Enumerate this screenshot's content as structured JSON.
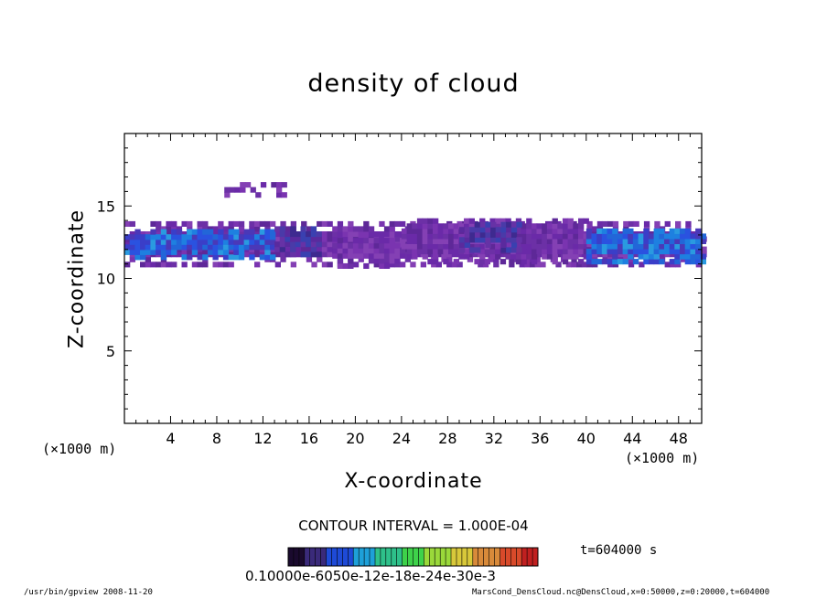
{
  "chart_data": {
    "type": "heatmap",
    "title": "density of cloud",
    "xlabel": "X-coordinate",
    "ylabel": "Z-coordinate",
    "x_unit": "(×1000 m)",
    "xlim": [
      0,
      50
    ],
    "ylim": [
      0,
      20
    ],
    "x_ticks": [
      4,
      8,
      12,
      16,
      20,
      24,
      28,
      32,
      36,
      40,
      44,
      48
    ],
    "y_ticks": [
      5,
      10,
      15
    ],
    "contour_interval_label": "CONTOUR INTERVAL = 1.000E-04",
    "colorbar_labels": "0.10000e-6050e-12e-18e-24e-30e-3",
    "colorbar_colors": [
      "#1a0a2e",
      "#3a2a7a",
      "#1e4ad6",
      "#1ea0d8",
      "#2ec08a",
      "#3ed24a",
      "#9ad83a",
      "#d8c83a",
      "#d88a3a",
      "#d84a2a",
      "#c02020"
    ],
    "time_label": "t=604000 s",
    "regions": [
      {
        "level": "low",
        "x0": 0,
        "x1": 50,
        "z0": 10.8,
        "z1": 13.6
      },
      {
        "level": "high",
        "x0": 0,
        "x1": 13,
        "z0": 11.3,
        "z1": 13.3
      },
      {
        "level": "mid",
        "x0": 13,
        "x1": 17,
        "z0": 11.5,
        "z1": 13.5
      },
      {
        "level": "low",
        "x0": 18,
        "x1": 24,
        "z0": 10.7,
        "z1": 12.6
      },
      {
        "level": "low",
        "x0": 24,
        "x1": 40,
        "z0": 11.0,
        "z1": 14.0
      },
      {
        "level": "mid",
        "x0": 29,
        "x1": 34,
        "z0": 11.8,
        "z1": 13.8
      },
      {
        "level": "high",
        "x0": 40,
        "x1": 50,
        "z0": 11.0,
        "z1": 13.2
      },
      {
        "level": "low",
        "x0": 8.2,
        "x1": 14,
        "z0": 15.6,
        "z1": 16.6
      }
    ]
  },
  "footer": {
    "left": "/usr/bin/gpview   2008-11-20",
    "right": "MarsCond_DensCloud.nc@DensCloud,x=0:50000,z=0:20000,t=604000"
  }
}
